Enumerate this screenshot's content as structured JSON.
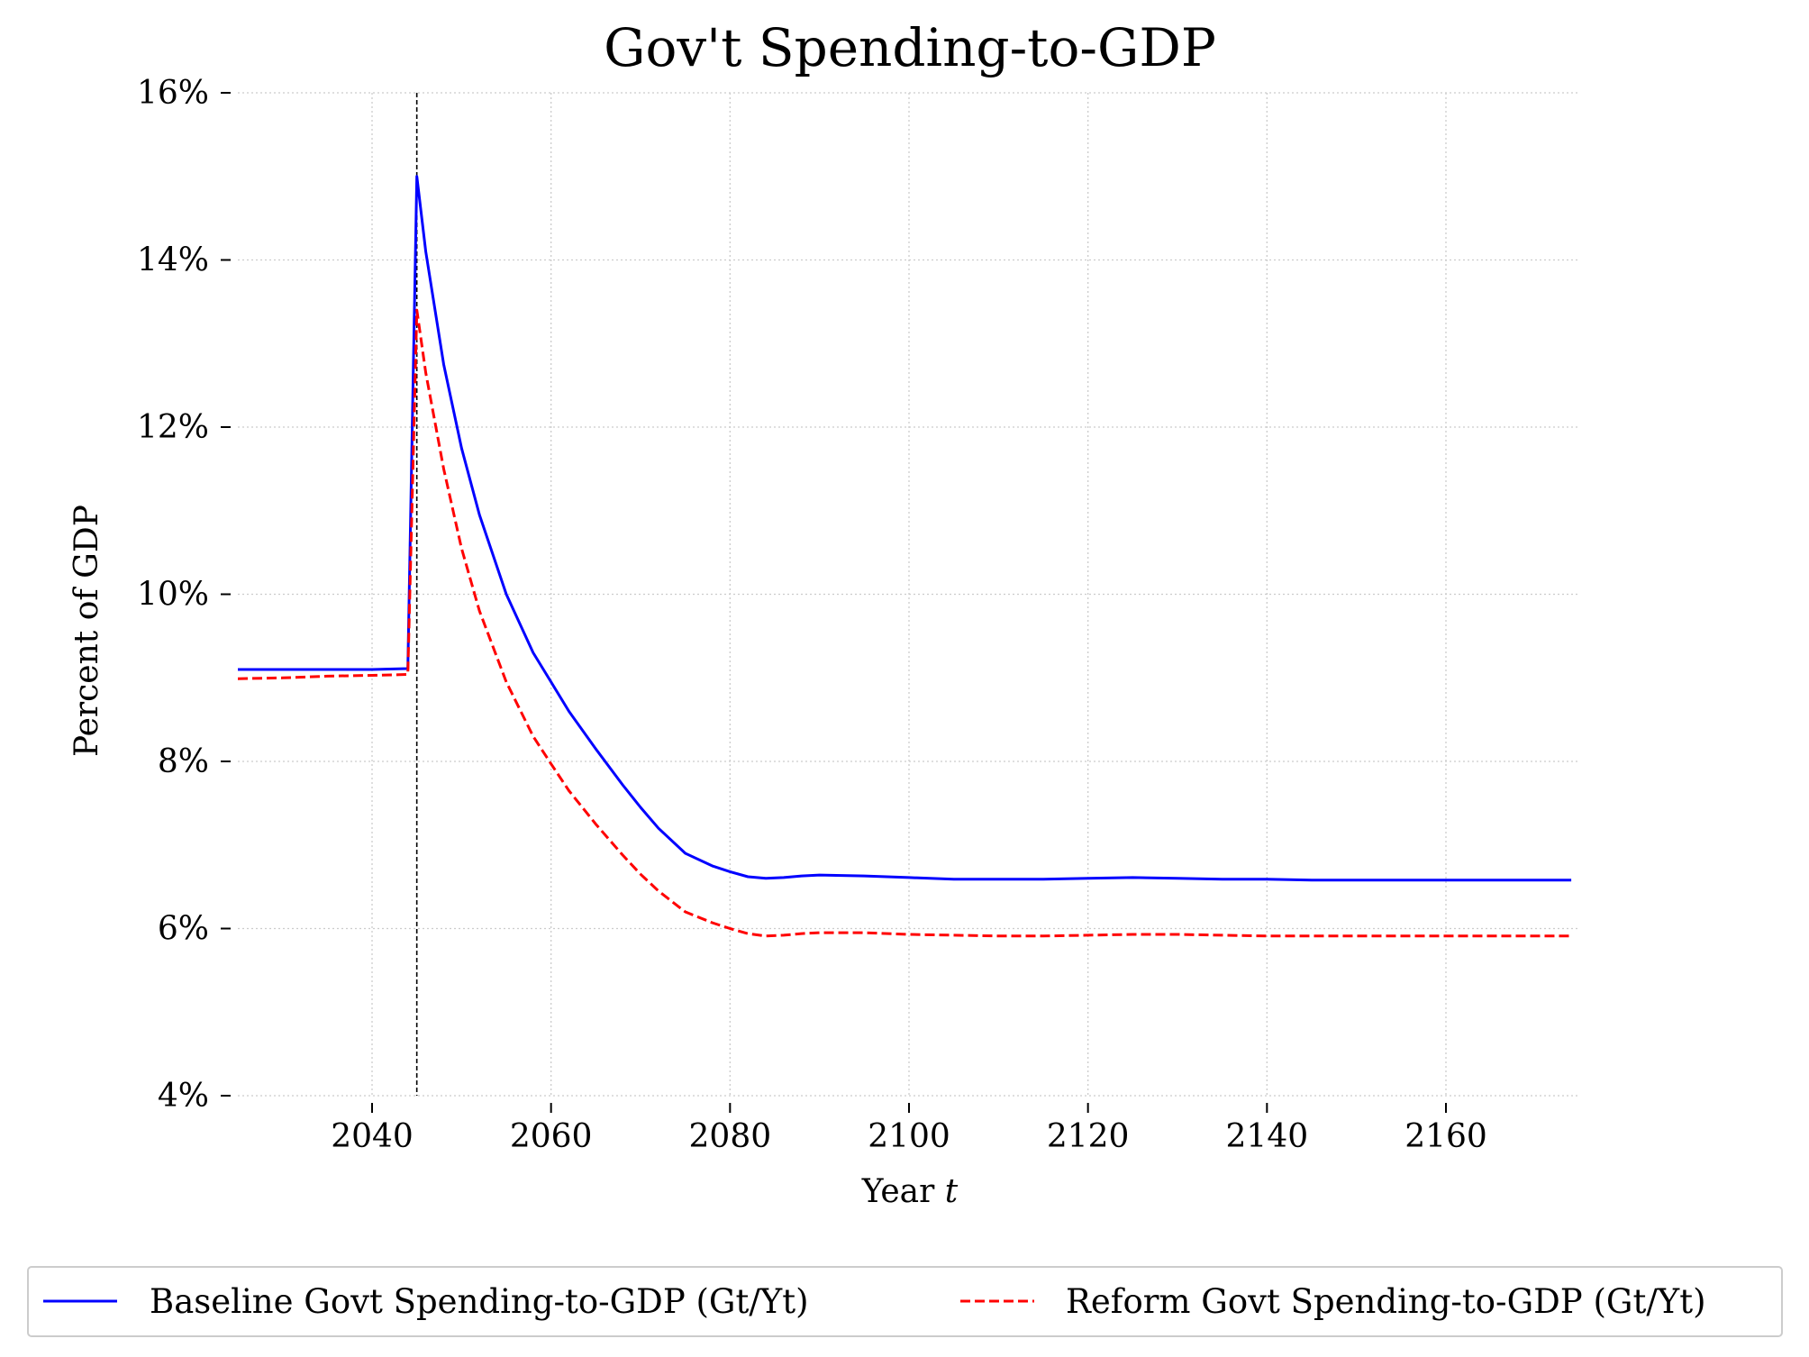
{
  "chart_data": {
    "type": "line",
    "title": "Gov't Spending-to-GDP",
    "xlabel": "Year ",
    "xlabel_var": "t",
    "ylabel": "Percent of GDP",
    "xlim": [
      2025,
      2175
    ],
    "ylim": [
      0.04,
      0.16
    ],
    "xticks": [
      2040,
      2060,
      2080,
      2100,
      2120,
      2140,
      2160
    ],
    "xtick_labels": [
      "2040",
      "2060",
      "2080",
      "2100",
      "2120",
      "2140",
      "2160"
    ],
    "yticks": [
      0.04,
      0.06,
      0.08,
      0.1,
      0.12,
      0.14,
      0.16
    ],
    "ytick_labels": [
      "4%",
      "6%",
      "8%",
      "10%",
      "12%",
      "14%",
      "16%"
    ],
    "grid": true,
    "vline": {
      "x": 2045,
      "color": "#000000",
      "style": "dashed"
    },
    "legend_position": "bottom-center",
    "series": [
      {
        "name": "Baseline Govt Spending-to-GDP",
        "name_math": "(Gt/Yt)",
        "color": "#0000ff",
        "style": "solid",
        "x": [
          2025,
          2030,
          2035,
          2040,
          2044,
          2045,
          2046,
          2048,
          2050,
          2052,
          2055,
          2058,
          2060,
          2062,
          2065,
          2068,
          2070,
          2072,
          2075,
          2078,
          2080,
          2082,
          2084,
          2086,
          2088,
          2090,
          2095,
          2100,
          2105,
          2110,
          2115,
          2120,
          2125,
          2130,
          2135,
          2140,
          2145,
          2150,
          2155,
          2160,
          2165,
          2170,
          2174
        ],
        "y": [
          0.091,
          0.091,
          0.091,
          0.091,
          0.0911,
          0.15,
          0.141,
          0.1275,
          0.1175,
          0.1095,
          0.1,
          0.093,
          0.0895,
          0.086,
          0.0815,
          0.0772,
          0.0745,
          0.072,
          0.069,
          0.0675,
          0.0668,
          0.0662,
          0.066,
          0.0661,
          0.0663,
          0.0664,
          0.0663,
          0.0661,
          0.0659,
          0.0659,
          0.0659,
          0.066,
          0.0661,
          0.066,
          0.0659,
          0.0659,
          0.0658,
          0.0658,
          0.0658,
          0.0658,
          0.0658,
          0.0658,
          0.0658
        ]
      },
      {
        "name": "Reform Govt Spending-to-GDP",
        "name_math": "(Gt/Yt)",
        "color": "#ff0000",
        "style": "dashed",
        "x": [
          2025,
          2030,
          2035,
          2040,
          2044,
          2045,
          2046,
          2048,
          2050,
          2052,
          2055,
          2058,
          2060,
          2062,
          2065,
          2068,
          2070,
          2072,
          2075,
          2078,
          2080,
          2082,
          2084,
          2086,
          2088,
          2090,
          2095,
          2100,
          2105,
          2110,
          2115,
          2120,
          2125,
          2130,
          2135,
          2140,
          2145,
          2150,
          2155,
          2160,
          2165,
          2170,
          2174
        ],
        "y": [
          0.0899,
          0.09,
          0.0902,
          0.0903,
          0.0904,
          0.134,
          0.1265,
          0.115,
          0.1055,
          0.098,
          0.0895,
          0.083,
          0.0797,
          0.0765,
          0.0725,
          0.0688,
          0.0665,
          0.0645,
          0.062,
          0.0607,
          0.06,
          0.0594,
          0.0591,
          0.0592,
          0.0594,
          0.0595,
          0.0595,
          0.0593,
          0.0592,
          0.0591,
          0.0591,
          0.0592,
          0.0593,
          0.0593,
          0.0592,
          0.0591,
          0.0591,
          0.0591,
          0.0591,
          0.0591,
          0.0591,
          0.0591,
          0.0591
        ]
      }
    ]
  }
}
